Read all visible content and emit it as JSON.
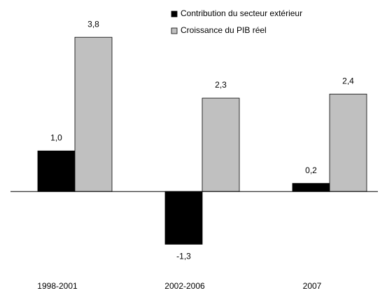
{
  "chart_data": {
    "type": "bar",
    "categories": [
      "1998-2001",
      "2002-2006",
      "2007"
    ],
    "series": [
      {
        "name": "Contribution du secteur extérieur",
        "color": "#000000",
        "values": [
          1.0,
          -1.3,
          0.2
        ],
        "value_labels": [
          "1,0",
          "-1,3",
          "0,2"
        ]
      },
      {
        "name": "Croissance du PIB réel",
        "color": "#c0c0c0",
        "values": [
          3.8,
          2.3,
          2.4
        ],
        "value_labels": [
          "3,8",
          "2,3",
          "2,4"
        ]
      }
    ],
    "ylim": [
      -2,
      4.2
    ],
    "legend": "top"
  }
}
